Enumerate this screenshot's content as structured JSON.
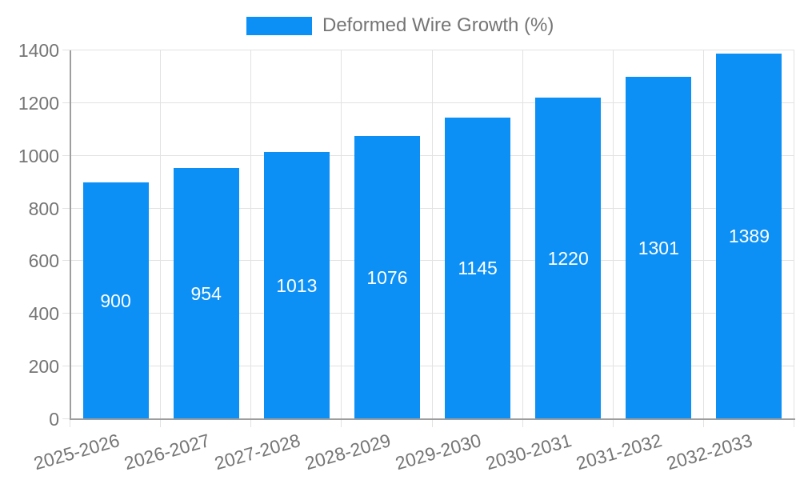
{
  "chart_data": {
    "type": "bar",
    "legend_label": "Deformed Wire Growth (%)",
    "legend_position": "top-center",
    "categories": [
      "2025-2026",
      "2026-2027",
      "2027-2028",
      "2028-2029",
      "2029-2030",
      "2030-2031",
      "2031-2032",
      "2032-2033"
    ],
    "values": [
      900,
      954,
      1013,
      1076,
      1145,
      1220,
      1301,
      1389
    ],
    "ylim": [
      0,
      1400
    ],
    "yticks": [
      0,
      200,
      400,
      600,
      800,
      1000,
      1200,
      1400
    ],
    "grid": true,
    "x_label_rotation_deg": -16,
    "colors": {
      "bar": "#0D90F5",
      "bar_value_text": "#FFFFFF",
      "axis_text": "#757575",
      "grid_line": "#E2E2E2",
      "axis_line": "#9E9E9E",
      "background": "#FFFFFF"
    }
  }
}
